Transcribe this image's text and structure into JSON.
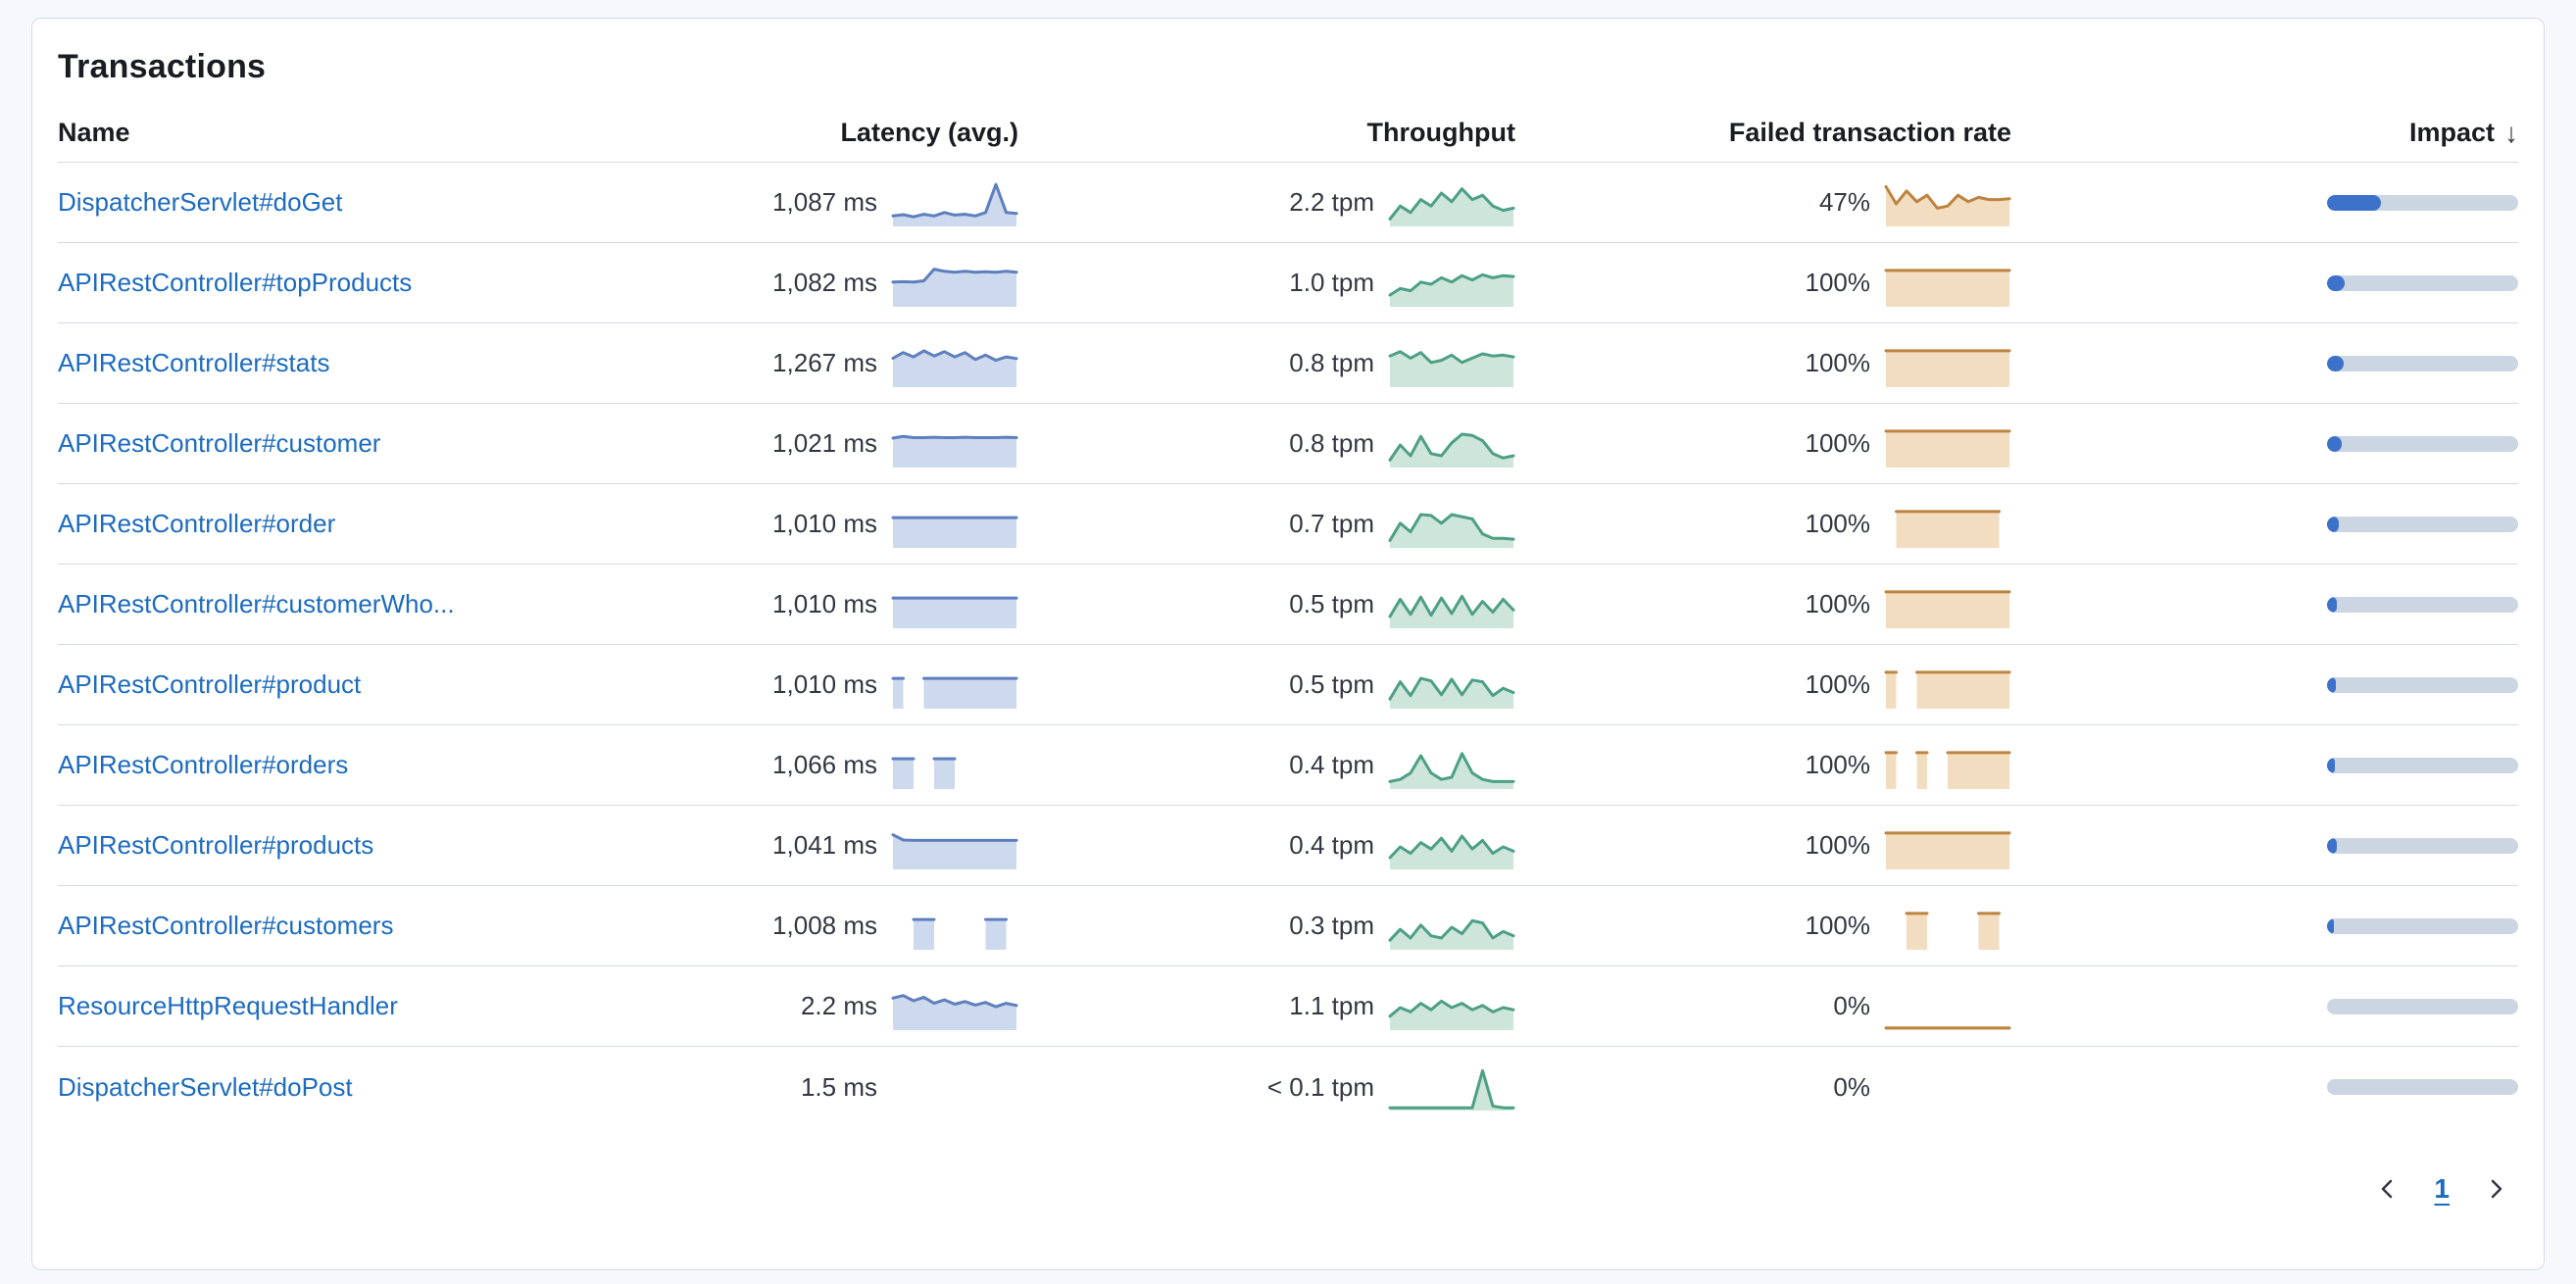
{
  "panel": {
    "title": "Transactions"
  },
  "table": {
    "headers": {
      "name": "Name",
      "latency": "Latency (avg.)",
      "throughput": "Throughput",
      "failed": "Failed transaction rate",
      "impact": "Impact"
    },
    "sort_icon": "↓",
    "rows": [
      {
        "name": "DispatcherServlet#doGet",
        "latency": {
          "value": "1,087 ms",
          "spark": [
            0.22,
            0.25,
            0.2,
            0.26,
            0.22,
            0.3,
            0.24,
            0.26,
            0.22,
            0.3,
            0.95,
            0.3,
            0.28
          ]
        },
        "throughput": {
          "value": "2.2 tpm",
          "spark": [
            0.15,
            0.45,
            0.3,
            0.6,
            0.45,
            0.75,
            0.55,
            0.85,
            0.6,
            0.7,
            0.45,
            0.35,
            0.4
          ]
        },
        "failed": {
          "value": "47%",
          "spark": [
            0.9,
            0.5,
            0.8,
            0.55,
            0.7,
            0.4,
            0.45,
            0.7,
            0.55,
            0.65,
            0.6,
            0.6,
            0.62
          ]
        },
        "impact": 0.28
      },
      {
        "name": "APIRestController#topProducts",
        "latency": {
          "value": "1,082 ms",
          "spark": [
            0.55,
            0.56,
            0.55,
            0.58,
            0.85,
            0.8,
            0.78,
            0.8,
            0.78,
            0.79,
            0.78,
            0.8,
            0.78
          ]
        },
        "throughput": {
          "value": "1.0 tpm",
          "spark": [
            0.25,
            0.4,
            0.35,
            0.55,
            0.5,
            0.65,
            0.55,
            0.7,
            0.6,
            0.72,
            0.65,
            0.7,
            0.68
          ]
        },
        "failed": {
          "value": "100%",
          "spark": [
            0.82,
            0.82,
            0.82,
            0.82,
            0.82,
            0.82,
            0.82,
            0.82,
            0.82,
            0.82,
            0.82,
            0.82,
            0.82
          ]
        },
        "impact": 0.09
      },
      {
        "name": "APIRestController#stats",
        "latency": {
          "value": "1,267 ms",
          "spark": [
            0.65,
            0.78,
            0.68,
            0.82,
            0.7,
            0.8,
            0.68,
            0.78,
            0.62,
            0.72,
            0.6,
            0.68,
            0.64
          ]
        },
        "throughput": {
          "value": "0.8 tpm",
          "spark": [
            0.7,
            0.8,
            0.65,
            0.78,
            0.55,
            0.6,
            0.72,
            0.55,
            0.65,
            0.75,
            0.7,
            0.72,
            0.68
          ]
        },
        "failed": {
          "value": "100%",
          "spark": [
            0.82,
            0.82,
            0.82,
            0.82,
            0.82,
            0.82,
            0.82,
            0.82,
            0.82,
            0.82,
            0.82,
            0.82,
            0.82
          ]
        },
        "impact": 0.085
      },
      {
        "name": "APIRestController#customer",
        "latency": {
          "value": "1,021 ms",
          "spark": [
            0.66,
            0.7,
            0.67,
            0.67,
            0.68,
            0.67,
            0.67,
            0.68,
            0.67,
            0.67,
            0.67,
            0.68,
            0.67
          ]
        },
        "throughput": {
          "value": "0.8 tpm",
          "spark": [
            0.15,
            0.5,
            0.25,
            0.7,
            0.3,
            0.25,
            0.55,
            0.75,
            0.72,
            0.6,
            0.3,
            0.2,
            0.25
          ]
        },
        "failed": {
          "value": "100%",
          "spark": [
            0.82,
            0.82,
            0.82,
            0.82,
            0.82,
            0.82,
            0.82,
            0.82,
            0.82,
            0.82,
            0.82,
            0.82,
            0.82
          ]
        },
        "impact": 0.075
      },
      {
        "name": "APIRestController#order",
        "latency": {
          "value": "1,010 ms",
          "spark": [
            0.68,
            0.68,
            0.68,
            0.68,
            0.68,
            0.68,
            0.68,
            0.68,
            0.68,
            0.68,
            0.68,
            0.68,
            0.68
          ]
        },
        "throughput": {
          "value": "0.7 tpm",
          "spark": [
            0.15,
            0.55,
            0.35,
            0.75,
            0.73,
            0.55,
            0.75,
            0.7,
            0.65,
            0.3,
            0.2,
            0.2,
            0.18
          ]
        },
        "failed": {
          "value": "100%",
          "spark": [
            null,
            0.82,
            0.82,
            0.82,
            0.82,
            0.82,
            0.82,
            0.82,
            0.82,
            0.82,
            0.82,
            0.82,
            null
          ]
        },
        "impact": 0.06
      },
      {
        "name": "APIRestController#customerWho...",
        "latency": {
          "value": "1,010 ms",
          "spark": [
            0.68,
            0.68,
            0.68,
            0.68,
            0.68,
            0.68,
            0.68,
            0.68,
            0.68,
            0.68,
            0.68,
            0.68,
            0.68
          ]
        },
        "throughput": {
          "value": "0.5 tpm",
          "spark": [
            0.25,
            0.65,
            0.3,
            0.7,
            0.28,
            0.68,
            0.32,
            0.72,
            0.3,
            0.6,
            0.35,
            0.65,
            0.4
          ]
        },
        "failed": {
          "value": "100%",
          "spark": [
            0.82,
            0.82,
            0.82,
            0.82,
            0.82,
            0.82,
            0.82,
            0.82,
            0.82,
            0.82,
            0.82,
            0.82,
            0.82
          ]
        },
        "impact": 0.05
      },
      {
        "name": "APIRestController#product",
        "latency": {
          "value": "1,010 ms",
          "spark": [
            0.68,
            0.68,
            null,
            0.68,
            0.68,
            0.68,
            0.68,
            0.68,
            0.68,
            0.68,
            0.68,
            0.68,
            0.68
          ]
        },
        "throughput": {
          "value": "0.5 tpm",
          "spark": [
            0.2,
            0.6,
            0.28,
            0.68,
            0.62,
            0.3,
            0.66,
            0.3,
            0.64,
            0.6,
            0.28,
            0.45,
            0.35
          ]
        },
        "failed": {
          "value": "100%",
          "spark": [
            0.82,
            0.82,
            null,
            0.82,
            0.82,
            0.82,
            0.82,
            0.82,
            0.82,
            0.82,
            0.82,
            0.82,
            0.82
          ]
        },
        "impact": 0.045
      },
      {
        "name": "APIRestController#orders",
        "latency": {
          "value": "1,066 ms",
          "spark": [
            0.68,
            0.68,
            0.68,
            null,
            0.68,
            0.68,
            0.68,
            null,
            null,
            null,
            null,
            null,
            null
          ]
        },
        "throughput": {
          "value": "0.4 tpm",
          "spark": [
            0.15,
            0.2,
            0.35,
            0.75,
            0.35,
            0.2,
            0.25,
            0.8,
            0.35,
            0.2,
            0.15,
            0.15,
            0.15
          ]
        },
        "failed": {
          "value": "100%",
          "spark": [
            0.82,
            0.82,
            null,
            0.82,
            0.82,
            null,
            0.82,
            0.82,
            0.82,
            0.82,
            0.82,
            0.82,
            0.82
          ]
        },
        "impact": 0.04
      },
      {
        "name": "APIRestController#products",
        "latency": {
          "value": "1,041 ms",
          "spark": [
            0.78,
            0.66,
            0.65,
            0.65,
            0.65,
            0.65,
            0.65,
            0.65,
            0.65,
            0.65,
            0.65,
            0.65,
            0.65
          ]
        },
        "throughput": {
          "value": "0.4 tpm",
          "spark": [
            0.25,
            0.5,
            0.35,
            0.6,
            0.45,
            0.7,
            0.4,
            0.75,
            0.45,
            0.65,
            0.35,
            0.5,
            0.4
          ]
        },
        "failed": {
          "value": "100%",
          "spark": [
            0.82,
            0.82,
            0.82,
            0.82,
            0.82,
            0.82,
            0.82,
            0.82,
            0.82,
            0.82,
            0.82,
            0.82,
            0.82
          ]
        },
        "impact": 0.05
      },
      {
        "name": "APIRestController#customers",
        "latency": {
          "value": "1,008 ms",
          "spark": [
            null,
            null,
            0.68,
            0.68,
            0.68,
            null,
            null,
            null,
            null,
            0.68,
            0.68,
            0.68,
            null
          ]
        },
        "throughput": {
          "value": "0.3 tpm",
          "spark": [
            0.2,
            0.45,
            0.25,
            0.55,
            0.3,
            0.25,
            0.5,
            0.35,
            0.65,
            0.6,
            0.25,
            0.4,
            0.3
          ]
        },
        "failed": {
          "value": "100%",
          "spark": [
            null,
            null,
            0.82,
            0.82,
            0.82,
            null,
            null,
            null,
            null,
            0.82,
            0.82,
            0.82,
            null
          ]
        },
        "impact": 0.035
      },
      {
        "name": "ResourceHttpRequestHandler",
        "latency": {
          "value": "2.2 ms",
          "spark": [
            0.72,
            0.78,
            0.66,
            0.74,
            0.6,
            0.68,
            0.58,
            0.64,
            0.56,
            0.62,
            0.52,
            0.6,
            0.55
          ]
        },
        "throughput": {
          "value": "1.1 tpm",
          "spark": [
            0.3,
            0.5,
            0.4,
            0.6,
            0.45,
            0.65,
            0.5,
            0.6,
            0.45,
            0.55,
            0.4,
            0.5,
            0.45
          ]
        },
        "failed": {
          "value": "0%",
          "spark": [
            0.03,
            0.03,
            0.03,
            0.03,
            0.03,
            0.03,
            0.03,
            0.03,
            0.03,
            0.03,
            0.03,
            0.03,
            0.03
          ]
        },
        "impact": 0
      },
      {
        "name": "DispatcherServlet#doPost",
        "latency": {
          "value": "1.5 ms",
          "spark": []
        },
        "throughput": {
          "value": "< 0.1 tpm",
          "spark": [
            0.04,
            0.04,
            0.04,
            0.04,
            0.04,
            0.04,
            0.04,
            0.04,
            0.04,
            0.9,
            0.08,
            0.04,
            0.04
          ]
        },
        "failed": {
          "value": "0%",
          "spark": []
        },
        "impact": 0
      }
    ]
  },
  "pagination": {
    "page": "1"
  },
  "colors": {
    "latency_stroke": "#5e7fbe",
    "latency_fill": "#cdd9ed",
    "throughput_stroke": "#4d9f85",
    "throughput_fill": "#cde5da",
    "failed_stroke": "#bd8440",
    "failed_fill": "#f2ddc1",
    "impact_fill": "#3c72c9",
    "impact_track": "#ccd5e2",
    "link": "#1d6bbf"
  }
}
